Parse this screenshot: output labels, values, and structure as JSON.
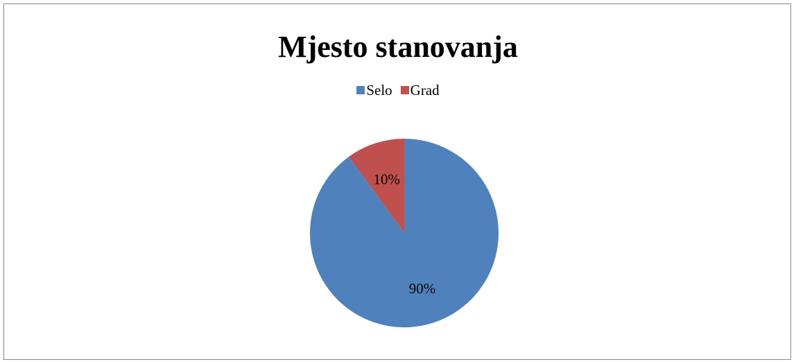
{
  "chart_data": {
    "type": "pie",
    "title": "Mjesto stanovanja",
    "categories": [
      "Selo",
      "Grad"
    ],
    "values": [
      90,
      10
    ],
    "data_labels": [
      "90%",
      "10%"
    ],
    "colors": [
      "#4F81BD",
      "#C0504D"
    ],
    "legend_position": "top"
  }
}
